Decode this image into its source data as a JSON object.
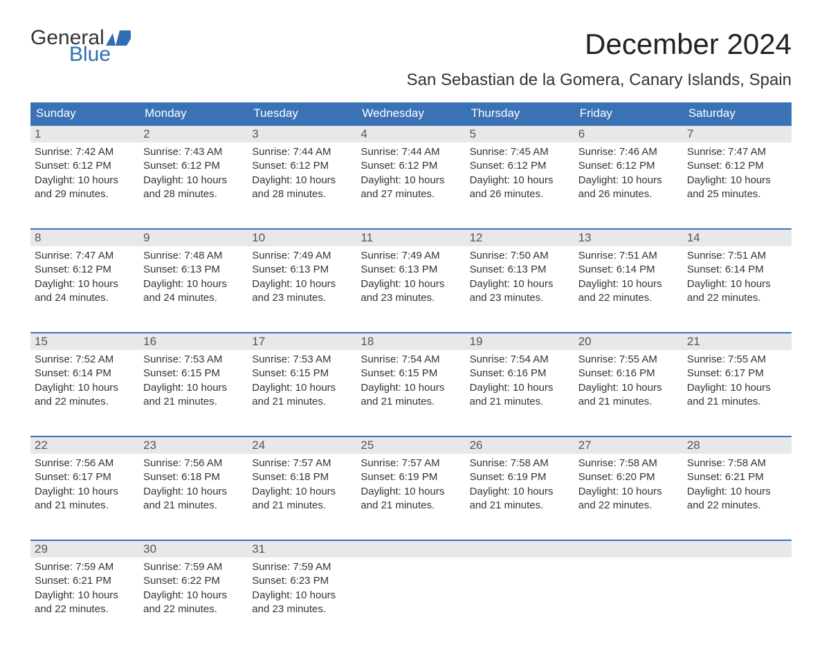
{
  "brand": {
    "word1": "General",
    "word2": "Blue",
    "text_color": "#333333",
    "accent_color": "#2f6eb5"
  },
  "title": "December 2024",
  "location": "San Sebastian de la Gomera, Canary Islands, Spain",
  "colors": {
    "header_bg": "#3a72b5",
    "header_text": "#ffffff",
    "daynum_bg": "#e8e8e8",
    "daynum_text": "#555555",
    "body_text": "#333333",
    "page_bg": "#ffffff",
    "week_border": "#3a72b5"
  },
  "fonts": {
    "title_size_pt": 32,
    "location_size_pt": 18,
    "header_size_pt": 13,
    "body_size_pt": 11
  },
  "weekdays": [
    "Sunday",
    "Monday",
    "Tuesday",
    "Wednesday",
    "Thursday",
    "Friday",
    "Saturday"
  ],
  "weeks": [
    [
      {
        "n": "1",
        "sunrise": "Sunrise: 7:42 AM",
        "sunset": "Sunset: 6:12 PM",
        "d1": "Daylight: 10 hours",
        "d2": "and 29 minutes."
      },
      {
        "n": "2",
        "sunrise": "Sunrise: 7:43 AM",
        "sunset": "Sunset: 6:12 PM",
        "d1": "Daylight: 10 hours",
        "d2": "and 28 minutes."
      },
      {
        "n": "3",
        "sunrise": "Sunrise: 7:44 AM",
        "sunset": "Sunset: 6:12 PM",
        "d1": "Daylight: 10 hours",
        "d2": "and 28 minutes."
      },
      {
        "n": "4",
        "sunrise": "Sunrise: 7:44 AM",
        "sunset": "Sunset: 6:12 PM",
        "d1": "Daylight: 10 hours",
        "d2": "and 27 minutes."
      },
      {
        "n": "5",
        "sunrise": "Sunrise: 7:45 AM",
        "sunset": "Sunset: 6:12 PM",
        "d1": "Daylight: 10 hours",
        "d2": "and 26 minutes."
      },
      {
        "n": "6",
        "sunrise": "Sunrise: 7:46 AM",
        "sunset": "Sunset: 6:12 PM",
        "d1": "Daylight: 10 hours",
        "d2": "and 26 minutes."
      },
      {
        "n": "7",
        "sunrise": "Sunrise: 7:47 AM",
        "sunset": "Sunset: 6:12 PM",
        "d1": "Daylight: 10 hours",
        "d2": "and 25 minutes."
      }
    ],
    [
      {
        "n": "8",
        "sunrise": "Sunrise: 7:47 AM",
        "sunset": "Sunset: 6:12 PM",
        "d1": "Daylight: 10 hours",
        "d2": "and 24 minutes."
      },
      {
        "n": "9",
        "sunrise": "Sunrise: 7:48 AM",
        "sunset": "Sunset: 6:13 PM",
        "d1": "Daylight: 10 hours",
        "d2": "and 24 minutes."
      },
      {
        "n": "10",
        "sunrise": "Sunrise: 7:49 AM",
        "sunset": "Sunset: 6:13 PM",
        "d1": "Daylight: 10 hours",
        "d2": "and 23 minutes."
      },
      {
        "n": "11",
        "sunrise": "Sunrise: 7:49 AM",
        "sunset": "Sunset: 6:13 PM",
        "d1": "Daylight: 10 hours",
        "d2": "and 23 minutes."
      },
      {
        "n": "12",
        "sunrise": "Sunrise: 7:50 AM",
        "sunset": "Sunset: 6:13 PM",
        "d1": "Daylight: 10 hours",
        "d2": "and 23 minutes."
      },
      {
        "n": "13",
        "sunrise": "Sunrise: 7:51 AM",
        "sunset": "Sunset: 6:14 PM",
        "d1": "Daylight: 10 hours",
        "d2": "and 22 minutes."
      },
      {
        "n": "14",
        "sunrise": "Sunrise: 7:51 AM",
        "sunset": "Sunset: 6:14 PM",
        "d1": "Daylight: 10 hours",
        "d2": "and 22 minutes."
      }
    ],
    [
      {
        "n": "15",
        "sunrise": "Sunrise: 7:52 AM",
        "sunset": "Sunset: 6:14 PM",
        "d1": "Daylight: 10 hours",
        "d2": "and 22 minutes."
      },
      {
        "n": "16",
        "sunrise": "Sunrise: 7:53 AM",
        "sunset": "Sunset: 6:15 PM",
        "d1": "Daylight: 10 hours",
        "d2": "and 21 minutes."
      },
      {
        "n": "17",
        "sunrise": "Sunrise: 7:53 AM",
        "sunset": "Sunset: 6:15 PM",
        "d1": "Daylight: 10 hours",
        "d2": "and 21 minutes."
      },
      {
        "n": "18",
        "sunrise": "Sunrise: 7:54 AM",
        "sunset": "Sunset: 6:15 PM",
        "d1": "Daylight: 10 hours",
        "d2": "and 21 minutes."
      },
      {
        "n": "19",
        "sunrise": "Sunrise: 7:54 AM",
        "sunset": "Sunset: 6:16 PM",
        "d1": "Daylight: 10 hours",
        "d2": "and 21 minutes."
      },
      {
        "n": "20",
        "sunrise": "Sunrise: 7:55 AM",
        "sunset": "Sunset: 6:16 PM",
        "d1": "Daylight: 10 hours",
        "d2": "and 21 minutes."
      },
      {
        "n": "21",
        "sunrise": "Sunrise: 7:55 AM",
        "sunset": "Sunset: 6:17 PM",
        "d1": "Daylight: 10 hours",
        "d2": "and 21 minutes."
      }
    ],
    [
      {
        "n": "22",
        "sunrise": "Sunrise: 7:56 AM",
        "sunset": "Sunset: 6:17 PM",
        "d1": "Daylight: 10 hours",
        "d2": "and 21 minutes."
      },
      {
        "n": "23",
        "sunrise": "Sunrise: 7:56 AM",
        "sunset": "Sunset: 6:18 PM",
        "d1": "Daylight: 10 hours",
        "d2": "and 21 minutes."
      },
      {
        "n": "24",
        "sunrise": "Sunrise: 7:57 AM",
        "sunset": "Sunset: 6:18 PM",
        "d1": "Daylight: 10 hours",
        "d2": "and 21 minutes."
      },
      {
        "n": "25",
        "sunrise": "Sunrise: 7:57 AM",
        "sunset": "Sunset: 6:19 PM",
        "d1": "Daylight: 10 hours",
        "d2": "and 21 minutes."
      },
      {
        "n": "26",
        "sunrise": "Sunrise: 7:58 AM",
        "sunset": "Sunset: 6:19 PM",
        "d1": "Daylight: 10 hours",
        "d2": "and 21 minutes."
      },
      {
        "n": "27",
        "sunrise": "Sunrise: 7:58 AM",
        "sunset": "Sunset: 6:20 PM",
        "d1": "Daylight: 10 hours",
        "d2": "and 22 minutes."
      },
      {
        "n": "28",
        "sunrise": "Sunrise: 7:58 AM",
        "sunset": "Sunset: 6:21 PM",
        "d1": "Daylight: 10 hours",
        "d2": "and 22 minutes."
      }
    ],
    [
      {
        "n": "29",
        "sunrise": "Sunrise: 7:59 AM",
        "sunset": "Sunset: 6:21 PM",
        "d1": "Daylight: 10 hours",
        "d2": "and 22 minutes."
      },
      {
        "n": "30",
        "sunrise": "Sunrise: 7:59 AM",
        "sunset": "Sunset: 6:22 PM",
        "d1": "Daylight: 10 hours",
        "d2": "and 22 minutes."
      },
      {
        "n": "31",
        "sunrise": "Sunrise: 7:59 AM",
        "sunset": "Sunset: 6:23 PM",
        "d1": "Daylight: 10 hours",
        "d2": "and 23 minutes."
      },
      null,
      null,
      null,
      null
    ]
  ]
}
